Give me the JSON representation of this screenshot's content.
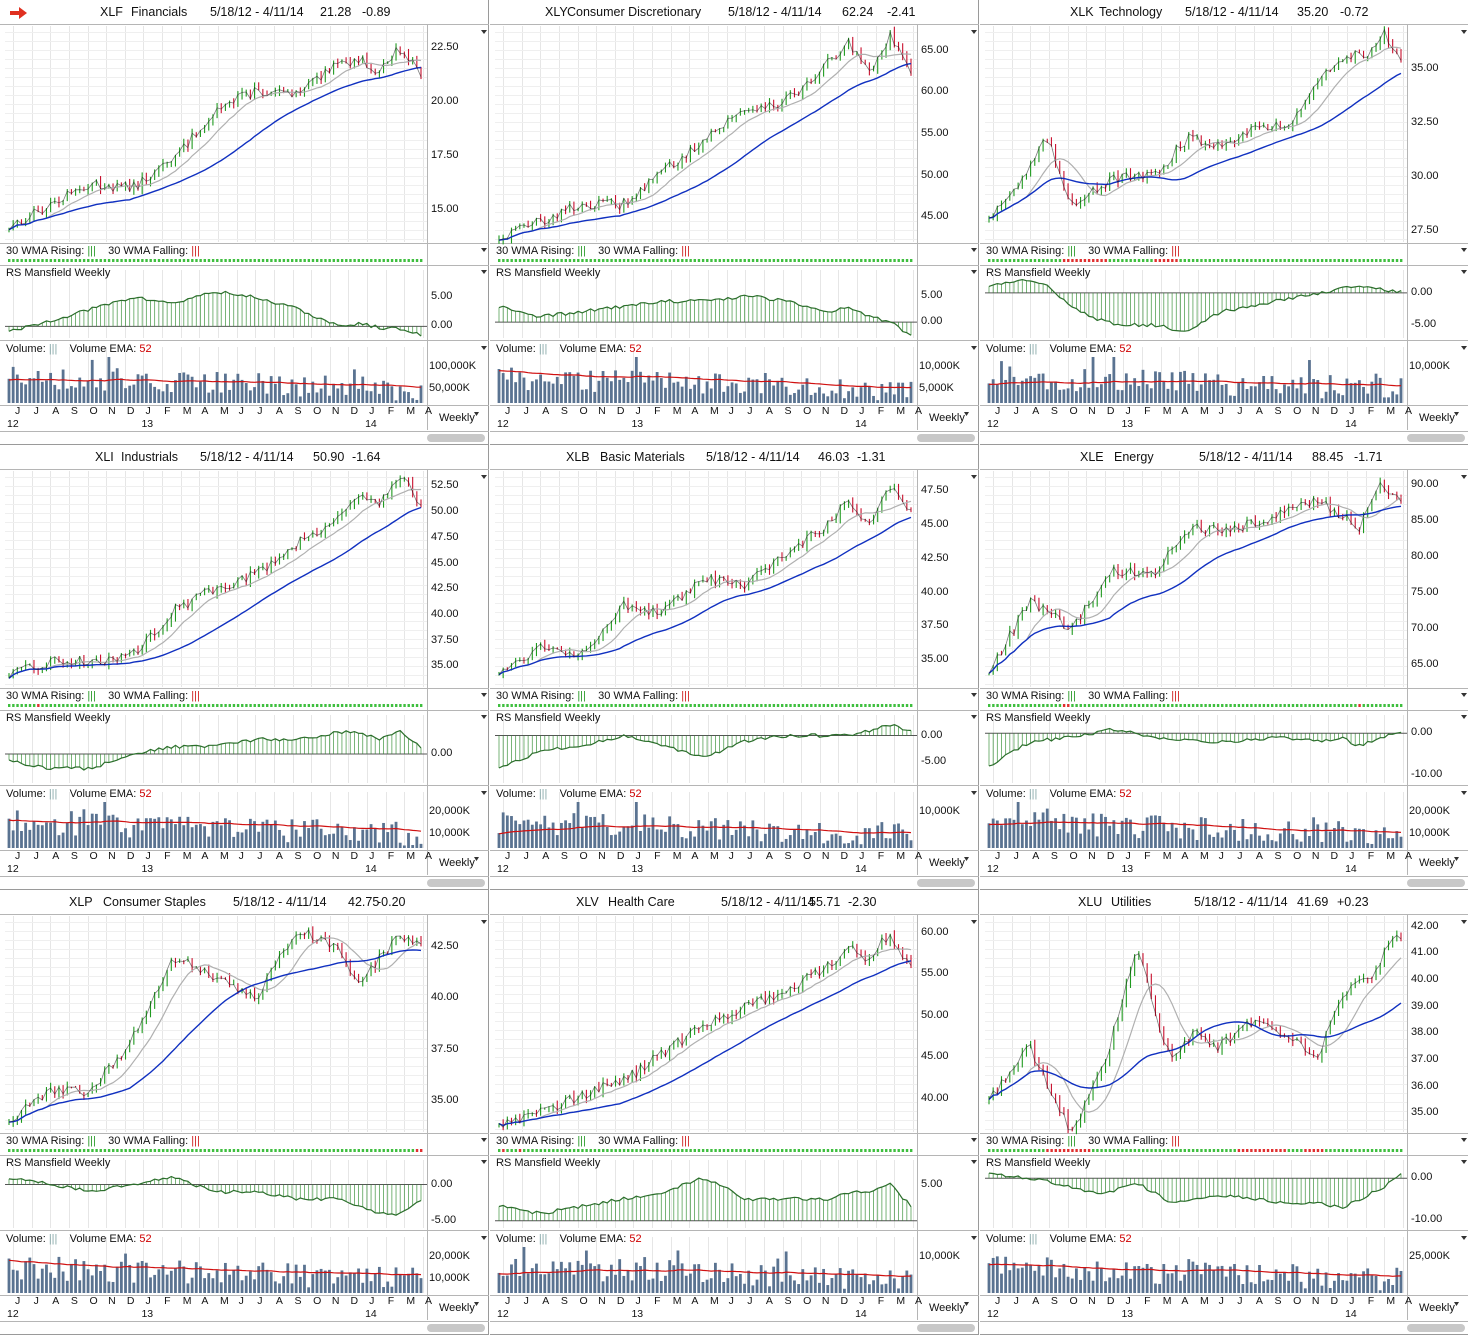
{
  "colors": {
    "up": "#1f9a1f",
    "down": "#c8102e",
    "price": "#111111",
    "wma30": "#1030c0",
    "ma10": "#b0b0b0",
    "volume": "#5a7391",
    "ema": "#d01010",
    "rs_fill": "#2c8a2c",
    "rs_line": "#2b6e2b",
    "grid": "#e6e6e6",
    "arrow": "#e03020"
  },
  "labels": {
    "wma_rising": "30 WMA Rising:",
    "wma_falling": "30 WMA Falling:",
    "rs": "RS Mansfield Weekly",
    "volume": "Volume:",
    "volume_ema": "Volume EMA:",
    "ema_period": "52",
    "weekly": "Weekly",
    "bars_glyph": "|||"
  },
  "months": [
    "J",
    "J",
    "A",
    "S",
    "O",
    "N",
    "D",
    "J",
    "F",
    "M",
    "A",
    "M",
    "J",
    "J",
    "A",
    "S",
    "O",
    "N",
    "D",
    "J",
    "F",
    "M",
    "A"
  ],
  "years": [
    "12",
    "13",
    "14"
  ],
  "panels": [
    {
      "symbol": "XLF",
      "name": "Financials",
      "range": "5/18/12 - 4/11/14",
      "last": "21.28",
      "change": "-0.89",
      "arrow": true,
      "price_ticks": [
        "22.50",
        "20.00",
        "17.50",
        "15.00"
      ],
      "rs_ticks": [
        "5.00",
        "0.00"
      ],
      "vol_ticks": [
        "100,000K",
        "50,000K"
      ]
    },
    {
      "symbol": "XLY",
      "name": "Consumer Discretionary",
      "range": "5/18/12 - 4/11/14",
      "last": "62.24",
      "change": "-2.41",
      "price_ticks": [
        "65.00",
        "60.00",
        "55.00",
        "50.00",
        "45.00"
      ],
      "rs_ticks": [
        "5.00",
        "0.00"
      ],
      "vol_ticks": [
        "10,000K",
        "5,000K"
      ]
    },
    {
      "symbol": "XLK",
      "name": "Technology",
      "range": "5/18/12 - 4/11/14",
      "last": "35.20",
      "change": "-0.72",
      "price_ticks": [
        "35.00",
        "32.50",
        "30.00",
        "27.50"
      ],
      "rs_ticks": [
        "0.00",
        "-5.00"
      ],
      "vol_ticks": [
        "10,000K"
      ]
    },
    {
      "symbol": "XLI",
      "name": "Industrials",
      "range": "5/18/12 - 4/11/14",
      "last": "50.90",
      "change": "-1.64",
      "price_ticks": [
        "52.50",
        "50.00",
        "47.50",
        "45.00",
        "42.50",
        "40.00",
        "37.50",
        "35.00"
      ],
      "rs_ticks": [
        "0.00"
      ],
      "vol_ticks": [
        "20,000K",
        "10,000K"
      ]
    },
    {
      "symbol": "XLB",
      "name": "Basic Materials",
      "range": "5/18/12 - 4/11/14",
      "last": "46.03",
      "change": "-1.31",
      "price_ticks": [
        "47.50",
        "45.00",
        "42.50",
        "40.00",
        "37.50",
        "35.00"
      ],
      "rs_ticks": [
        "0.00",
        "-5.00"
      ],
      "vol_ticks": [
        "10,000K"
      ]
    },
    {
      "symbol": "XLE",
      "name": "Energy",
      "range": "5/18/12 - 4/11/14",
      "last": "88.45",
      "change": "-1.71",
      "price_ticks": [
        "90.00",
        "85.00",
        "80.00",
        "75.00",
        "70.00",
        "65.00"
      ],
      "rs_ticks": [
        "0.00",
        "-10.00"
      ],
      "vol_ticks": [
        "20,000K",
        "10,000K"
      ]
    },
    {
      "symbol": "XLP",
      "name": "Consumer Staples",
      "range": "5/18/12 - 4/11/14",
      "last": "42.75",
      "change": "-0.20",
      "price_ticks": [
        "42.50",
        "40.00",
        "37.50",
        "35.00"
      ],
      "rs_ticks": [
        "0.00",
        "-5.00"
      ],
      "vol_ticks": [
        "20,000K",
        "10,000K"
      ]
    },
    {
      "symbol": "XLV",
      "name": "Health Care",
      "range": "5/18/12 - 4/11/14",
      "last": "55.71",
      "change": "-2.30",
      "price_ticks": [
        "60.00",
        "55.00",
        "50.00",
        "45.00",
        "40.00"
      ],
      "rs_ticks": [
        "5.00"
      ],
      "vol_ticks": [
        "10,000K"
      ]
    },
    {
      "symbol": "XLU",
      "name": "Utilities",
      "range": "5/18/12 - 4/11/14",
      "last": "41.69",
      "change": "+0.23",
      "price_ticks": [
        "42.00",
        "41.00",
        "40.00",
        "39.00",
        "38.00",
        "37.00",
        "36.00",
        "35.00"
      ],
      "rs_ticks": [
        "0.00",
        "-10.00"
      ],
      "vol_ticks": [
        "25,000K"
      ]
    }
  ],
  "chart_data": [
    {
      "type": "line",
      "title": "XLF Financials",
      "x_range": [
        "5/18/12",
        "4/11/14"
      ],
      "ylim": [
        13.5,
        23.5
      ],
      "x_weeks": [
        0,
        10,
        20,
        30,
        40,
        50,
        60,
        70,
        80,
        85,
        90,
        95,
        100
      ],
      "series": [
        {
          "name": "price",
          "values": [
            14.2,
            15.2,
            16.2,
            16.0,
            17.3,
            19.6,
            20.5,
            20.3,
            21.7,
            22.0,
            21.4,
            22.5,
            21.3
          ]
        }
      ],
      "rs_ylim": [
        -2,
        8
      ],
      "rs": [
        -1,
        1,
        3,
        5,
        4,
        6,
        5,
        3,
        0,
        0.5,
        -0.2,
        -0.5,
        -1.5
      ],
      "vol_ylim": [
        0,
        130000
      ],
      "vol_ema": [
        85000,
        55000,
        40000
      ]
    },
    {
      "type": "line",
      "title": "XLY Consumer Discretionary",
      "x_range": [
        "5/18/12",
        "4/11/14"
      ],
      "ylim": [
        42,
        68
      ],
      "x_weeks": [
        0,
        10,
        20,
        30,
        40,
        50,
        60,
        70,
        80,
        85,
        90,
        95,
        100
      ],
      "series": [
        {
          "name": "price",
          "values": [
            42.5,
            44.5,
            46.5,
            46.5,
            50.5,
            54.5,
            58,
            59,
            63.5,
            66,
            62,
            67,
            62.2
          ]
        }
      ],
      "rs_ylim": [
        -3,
        8
      ],
      "rs": [
        3,
        1,
        2,
        3,
        4,
        4,
        5,
        4,
        2,
        3,
        1,
        0,
        -2.5
      ],
      "vol_ylim": [
        0,
        14000
      ],
      "vol_ema": [
        6500,
        6000,
        5500
      ]
    },
    {
      "type": "line",
      "title": "XLK Technology",
      "x_range": [
        "5/18/12",
        "4/11/14"
      ],
      "ylim": [
        27,
        37
      ],
      "x_weeks": [
        0,
        8,
        14,
        20,
        26,
        32,
        40,
        48,
        56,
        64,
        72,
        80,
        88,
        92,
        96,
        100
      ],
      "series": [
        {
          "name": "price",
          "values": [
            28.2,
            29.8,
            31.8,
            28.8,
            29.5,
            30,
            30,
            31.8,
            31.5,
            32.3,
            32.3,
            34.5,
            35.7,
            35.8,
            36.6,
            35.2
          ]
        }
      ],
      "rs_ylim": [
        -7,
        2
      ],
      "rs": [
        1,
        2,
        1,
        -2,
        -4,
        -5,
        -5,
        -6,
        -3,
        -2,
        -1,
        0,
        1,
        1,
        0.5,
        0.2
      ],
      "vol_ylim": [
        0,
        14000
      ],
      "vol_ema": [
        9000,
        7000,
        6000
      ]
    },
    {
      "type": "line",
      "title": "XLI Industrials",
      "x_range": [
        "5/18/12",
        "4/11/14"
      ],
      "ylim": [
        33,
        54
      ],
      "x_weeks": [
        0,
        10,
        20,
        30,
        40,
        50,
        60,
        70,
        80,
        85,
        90,
        95,
        100
      ],
      "series": [
        {
          "name": "price",
          "values": [
            34,
            35.5,
            35.5,
            36,
            40.5,
            42.5,
            44,
            47,
            49.5,
            51.5,
            51,
            53.5,
            50.9
          ]
        }
      ],
      "rs_ylim": [
        -4,
        4
      ],
      "rs": [
        -1,
        -2,
        -2,
        0,
        1,
        1,
        2,
        2,
        3,
        3,
        2,
        3,
        1
      ]
    },
    {
      "type": "line",
      "title": "XLB Basic Materials",
      "x_range": [
        "5/18/12",
        "4/11/14"
      ],
      "ylim": [
        33,
        49
      ],
      "x_weeks": [
        0,
        10,
        20,
        30,
        40,
        50,
        60,
        70,
        80,
        85,
        90,
        95,
        100
      ],
      "series": [
        {
          "name": "price",
          "values": [
            34,
            36,
            35.5,
            39,
            38.5,
            41,
            40.5,
            43,
            45,
            47,
            45,
            48,
            46
          ]
        }
      ],
      "rs_ylim": [
        -9,
        2
      ],
      "rs": [
        -6,
        -3,
        -2,
        0,
        -2,
        -4,
        -1,
        0,
        0,
        0,
        1,
        2,
        1
      ]
    },
    {
      "type": "line",
      "title": "XLE Energy",
      "x_range": [
        "5/18/12",
        "4/11/14"
      ],
      "ylim": [
        62,
        92
      ],
      "x_weeks": [
        0,
        10,
        20,
        30,
        40,
        50,
        60,
        70,
        80,
        85,
        90,
        95,
        100
      ],
      "series": [
        {
          "name": "price",
          "values": [
            64,
            74,
            70,
            78,
            78,
            84,
            84,
            86,
            88,
            86,
            84,
            90,
            88.5
          ]
        }
      ],
      "rs_ylim": [
        -12,
        2
      ],
      "rs": [
        -8,
        -2,
        -1,
        1,
        -1,
        -2,
        -2,
        -1,
        -2,
        -1,
        -3,
        -1,
        0
      ]
    },
    {
      "type": "line",
      "title": "XLP Consumer Staples",
      "x_range": [
        "5/18/12",
        "4/11/14"
      ],
      "ylim": [
        33.5,
        44
      ],
      "x_weeks": [
        0,
        10,
        20,
        30,
        40,
        50,
        60,
        70,
        80,
        85,
        90,
        95,
        100
      ],
      "series": [
        {
          "name": "price",
          "values": [
            34,
            35.5,
            35.5,
            38,
            42,
            41,
            40,
            43.3,
            42.5,
            40.5,
            42,
            43,
            42.7
          ]
        }
      ],
      "rs_ylim": [
        -6,
        2
      ],
      "rs": [
        1,
        0,
        -1,
        0,
        1,
        -1,
        -1,
        -2,
        -2,
        -3,
        -4,
        -4,
        -2
      ]
    },
    {
      "type": "line",
      "title": "XLV Health Care",
      "x_range": [
        "5/18/12",
        "4/11/14"
      ],
      "ylim": [
        36,
        62
      ],
      "x_weeks": [
        0,
        10,
        20,
        30,
        40,
        50,
        60,
        70,
        80,
        85,
        90,
        95,
        100
      ],
      "series": [
        {
          "name": "price",
          "values": [
            37,
            38.5,
            40.5,
            42,
            45.5,
            49,
            51,
            53,
            56,
            58,
            57,
            60,
            55.7
          ]
        }
      ],
      "rs_ylim": [
        -1,
        7
      ],
      "rs": [
        2,
        1,
        2,
        3,
        4,
        6,
        3,
        3,
        3,
        4,
        4,
        5,
        2
      ]
    },
    {
      "type": "line",
      "title": "XLU Utilities",
      "x_range": [
        "5/18/12",
        "4/11/14"
      ],
      "ylim": [
        34.3,
        42.4
      ],
      "x_weeks": [
        0,
        10,
        20,
        28,
        36,
        44,
        50,
        56,
        64,
        72,
        80,
        86,
        92,
        96,
        100
      ],
      "series": [
        {
          "name": "price",
          "values": [
            35.5,
            37.5,
            34.2,
            36.8,
            41.2,
            37,
            38,
            37.5,
            38.5,
            38,
            37.2,
            39.5,
            40,
            41,
            41.7
          ]
        }
      ],
      "rs_ylim": [
        -12,
        2
      ],
      "rs": [
        1,
        0,
        -2,
        -4,
        -1,
        -6,
        -5,
        -4,
        -5,
        -6,
        -6,
        -7,
        -4,
        -2,
        1
      ]
    }
  ]
}
